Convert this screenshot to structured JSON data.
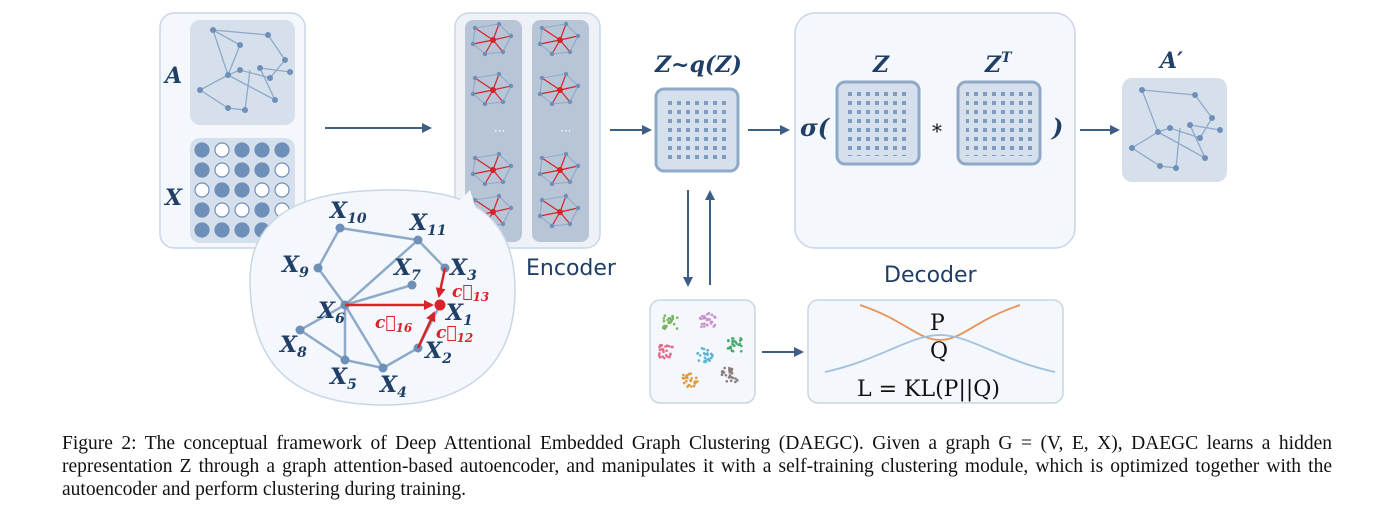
{
  "labels": {
    "adjacency": "A",
    "features": "X",
    "encoder": "Encoder",
    "decoder": "Decoder",
    "z_dist": "Z~q(Z)",
    "sigma_open": "σ(",
    "z": "Z",
    "z_transpose": "Z",
    "transpose_sup": "T",
    "times": "*",
    "close_paren": ")",
    "a_prime": "A′",
    "ellipsis": "···",
    "p": "P",
    "q": "Q",
    "loss": "L = KL(P||Q)"
  },
  "nodes": {
    "x10": "X",
    "x10_sub": "10",
    "x11": "X",
    "x11_sub": "11",
    "x9": "X",
    "x9_sub": "9",
    "x7": "X",
    "x7_sub": "7",
    "x3": "X",
    "x3_sub": "3",
    "x6": "X",
    "x6_sub": "6",
    "x1": "X",
    "x1_sub": "1",
    "x8": "X",
    "x8_sub": "8",
    "x2": "X",
    "x2_sub": "2",
    "x5": "X",
    "x5_sub": "5",
    "x4": "X",
    "x4_sub": "4"
  },
  "attention": {
    "c13": "c⃗",
    "c13_sub": "13",
    "c16": "c⃗",
    "c16_sub": "16",
    "c12": "c⃗",
    "c12_sub": "12"
  },
  "caption": {
    "text": "Figure 2: The conceptual framework of Deep Attentional Embedded Graph Clustering (DAEGC). Given a graph G = (V, E, X), DAEGC learns a hidden representation Z through a graph attention-based autoencoder, and manipulates it with a self-training clustering module, which is optimized together with the autoencoder and perform clustering during training."
  },
  "colors": {
    "panel_fill": "#f4f7fb",
    "panel_stroke": "#c9d6e6",
    "box_fill": "#d6e0ec",
    "node": "#6e90b8",
    "edge": "#8fa9c8",
    "text": "#1f3f66",
    "attention": "#d8232a",
    "curve_p": "#e8935a",
    "curve_q": "#9fc1dd"
  }
}
